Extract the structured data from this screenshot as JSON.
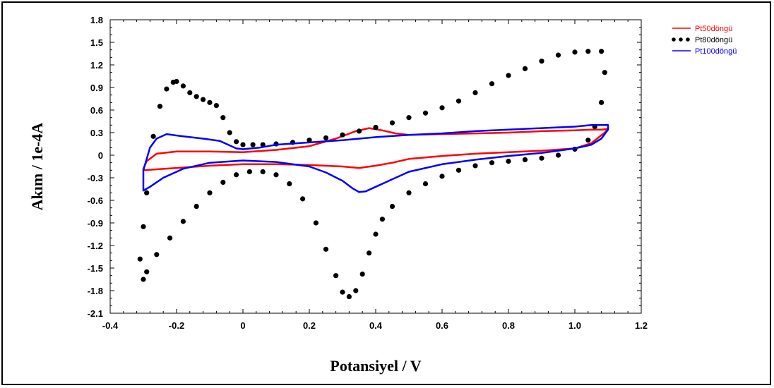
{
  "chart_data": {
    "type": "line",
    "title": "",
    "xlabel": "Potansiyel / V",
    "ylabel": "Akım / 1e-4A",
    "xlim": [
      -0.4,
      1.2
    ],
    "ylim": [
      -2.1,
      1.8
    ],
    "xticks": [
      "-0.4",
      "-0.2",
      "0",
      "0.2",
      "0.4",
      "0.6",
      "0.8",
      "1.0",
      "1.2"
    ],
    "xtick_values": [
      -0.4,
      -0.2,
      0,
      0.2,
      0.4,
      0.6,
      0.8,
      1.0,
      1.2
    ],
    "yticks": [
      "1.8",
      "1.5",
      "1.2",
      "0.9",
      "0.6",
      "0.3",
      "0",
      "-0.3",
      "-0.6",
      "-0.9",
      "-1.2",
      "-1.5",
      "-1.8",
      "-2.1"
    ],
    "ytick_values": [
      1.8,
      1.5,
      1.2,
      0.9,
      0.6,
      0.3,
      0,
      -0.3,
      -0.6,
      -0.9,
      -1.2,
      -1.5,
      -1.8,
      -2.1
    ],
    "grid": false,
    "legend_position": "top-right",
    "series": [
      {
        "name": "Pt50döngü",
        "color": "#ff0000",
        "style": "line",
        "x": [
          -0.3,
          -0.29,
          -0.26,
          -0.2,
          -0.1,
          0,
          0.1,
          0.2,
          0.28,
          0.34,
          0.38,
          0.42,
          0.46,
          0.5,
          0.6,
          0.7,
          0.8,
          0.9,
          1.0,
          1.05,
          1.08,
          1.1,
          1.09,
          1.05,
          1.0,
          0.9,
          0.8,
          0.7,
          0.6,
          0.5,
          0.45,
          0.4,
          0.35,
          0.3,
          0.2,
          0.1,
          0,
          -0.1,
          -0.2,
          -0.3,
          -0.3
        ],
        "y": [
          -0.18,
          -0.08,
          0.02,
          0.05,
          0.05,
          0.04,
          0.07,
          0.12,
          0.22,
          0.32,
          0.36,
          0.33,
          0.29,
          0.27,
          0.28,
          0.29,
          0.3,
          0.32,
          0.33,
          0.34,
          0.34,
          0.35,
          0.3,
          0.16,
          0.09,
          0.06,
          0.04,
          0.02,
          -0.01,
          -0.05,
          -0.1,
          -0.14,
          -0.17,
          -0.15,
          -0.13,
          -0.12,
          -0.12,
          -0.14,
          -0.17,
          -0.2,
          -0.18
        ]
      },
      {
        "name": "Pt80döngü",
        "color": "#000000",
        "style": "dots",
        "x": [
          -0.31,
          -0.3,
          -0.29,
          -0.27,
          -0.25,
          -0.23,
          -0.21,
          -0.2,
          -0.18,
          -0.16,
          -0.14,
          -0.12,
          -0.1,
          -0.08,
          -0.06,
          -0.04,
          -0.02,
          0,
          0.03,
          0.06,
          0.1,
          0.15,
          0.2,
          0.25,
          0.3,
          0.35,
          0.4,
          0.45,
          0.5,
          0.55,
          0.6,
          0.65,
          0.7,
          0.75,
          0.8,
          0.85,
          0.9,
          0.95,
          1.0,
          1.04,
          1.08,
          1.09,
          1.08,
          1.06,
          1.04,
          1.0,
          0.95,
          0.9,
          0.85,
          0.8,
          0.75,
          0.7,
          0.65,
          0.6,
          0.55,
          0.5,
          0.45,
          0.42,
          0.4,
          0.38,
          0.36,
          0.34,
          0.32,
          0.3,
          0.28,
          0.25,
          0.22,
          0.18,
          0.14,
          0.1,
          0.06,
          0.02,
          -0.02,
          -0.06,
          -0.1,
          -0.14,
          -0.18,
          -0.22,
          -0.26,
          -0.29,
          -0.3
        ],
        "y": [
          -1.38,
          -0.95,
          -0.5,
          0.25,
          0.65,
          0.88,
          0.97,
          0.98,
          0.92,
          0.83,
          0.78,
          0.74,
          0.7,
          0.66,
          0.5,
          0.3,
          0.18,
          0.14,
          0.14,
          0.14,
          0.15,
          0.17,
          0.2,
          0.23,
          0.27,
          0.32,
          0.37,
          0.43,
          0.5,
          0.56,
          0.63,
          0.72,
          0.83,
          0.95,
          1.06,
          1.15,
          1.25,
          1.33,
          1.37,
          1.38,
          1.38,
          1.1,
          0.7,
          0.38,
          0.2,
          0.08,
          0.0,
          -0.04,
          -0.06,
          -0.08,
          -0.1,
          -0.14,
          -0.2,
          -0.28,
          -0.38,
          -0.5,
          -0.68,
          -0.85,
          -1.05,
          -1.3,
          -1.58,
          -1.8,
          -1.88,
          -1.82,
          -1.6,
          -1.25,
          -0.9,
          -0.58,
          -0.38,
          -0.26,
          -0.22,
          -0.22,
          -0.26,
          -0.36,
          -0.5,
          -0.68,
          -0.88,
          -1.1,
          -1.32,
          -1.55,
          -1.65
        ]
      },
      {
        "name": "Pt100döngü",
        "color": "#0000ff",
        "style": "line",
        "x": [
          -0.3,
          -0.29,
          -0.28,
          -0.26,
          -0.23,
          -0.18,
          -0.12,
          -0.07,
          -0.04,
          -0.02,
          0,
          0.05,
          0.1,
          0.2,
          0.3,
          0.4,
          0.5,
          0.6,
          0.7,
          0.8,
          0.9,
          1.0,
          1.05,
          1.1,
          1.1,
          1.08,
          1.05,
          1.0,
          0.95,
          0.9,
          0.8,
          0.7,
          0.6,
          0.5,
          0.45,
          0.4,
          0.37,
          0.35,
          0.33,
          0.3,
          0.25,
          0.2,
          0.1,
          0,
          -0.1,
          -0.18,
          -0.24,
          -0.28,
          -0.3,
          -0.3
        ],
        "y": [
          -0.2,
          -0.05,
          0.1,
          0.22,
          0.28,
          0.25,
          0.22,
          0.19,
          0.13,
          0.09,
          0.08,
          0.1,
          0.14,
          0.17,
          0.2,
          0.24,
          0.27,
          0.29,
          0.32,
          0.34,
          0.36,
          0.38,
          0.4,
          0.4,
          0.34,
          0.22,
          0.14,
          0.09,
          0.06,
          0.03,
          -0.01,
          -0.06,
          -0.12,
          -0.22,
          -0.32,
          -0.42,
          -0.48,
          -0.49,
          -0.44,
          -0.34,
          -0.23,
          -0.15,
          -0.09,
          -0.07,
          -0.1,
          -0.18,
          -0.3,
          -0.42,
          -0.47,
          -0.2
        ]
      }
    ]
  }
}
